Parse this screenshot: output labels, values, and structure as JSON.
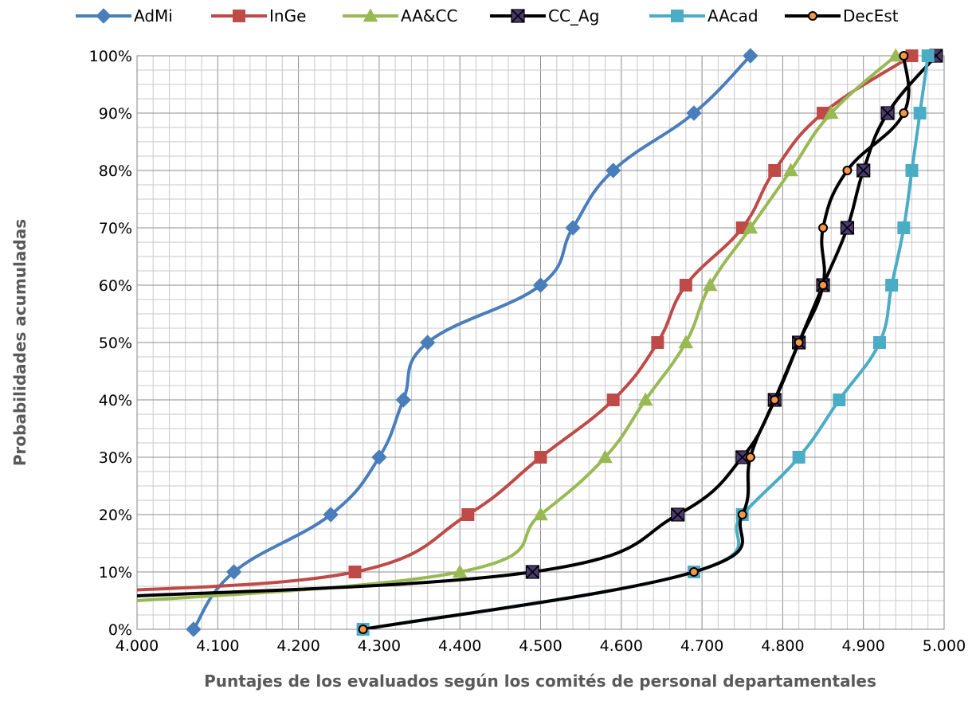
{
  "chart_data": {
    "type": "line",
    "xlabel": "Puntajes de los evaluados según los comités de personal departamentales",
    "ylabel": "Probabilidades acumuladas",
    "xlim": [
      4.0,
      5.0
    ],
    "ylim": [
      0,
      1
    ],
    "x_ticks": [
      "4.000",
      "4.100",
      "4.200",
      "4.300",
      "4.400",
      "4.500",
      "4.600",
      "4.700",
      "4.800",
      "4.900",
      "5.000"
    ],
    "y_ticks": [
      "0%",
      "10%",
      "20%",
      "30%",
      "40%",
      "50%",
      "60%",
      "70%",
      "80%",
      "90%",
      "100%"
    ],
    "grid": true,
    "legend_position": "top",
    "series": [
      {
        "name": "AdMi",
        "color": "#4a7ebb",
        "marker": "diamond",
        "points": [
          [
            4.07,
            0.0
          ],
          [
            4.12,
            0.1
          ],
          [
            4.24,
            0.2
          ],
          [
            4.3,
            0.3
          ],
          [
            4.33,
            0.4
          ],
          [
            4.36,
            0.5
          ],
          [
            4.5,
            0.6
          ],
          [
            4.54,
            0.7
          ],
          [
            4.59,
            0.8
          ],
          [
            4.69,
            0.9
          ],
          [
            4.76,
            1.0
          ]
        ]
      },
      {
        "name": "InGe",
        "color": "#be4b48",
        "marker": "square",
        "points": [
          [
            3.95,
            0.065
          ],
          [
            4.27,
            0.1
          ],
          [
            4.41,
            0.2
          ],
          [
            4.5,
            0.3
          ],
          [
            4.59,
            0.4
          ],
          [
            4.645,
            0.5
          ],
          [
            4.68,
            0.6
          ],
          [
            4.75,
            0.7
          ],
          [
            4.79,
            0.8
          ],
          [
            4.85,
            0.9
          ],
          [
            4.96,
            1.0
          ]
        ]
      },
      {
        "name": "AA&CC",
        "color": "#98b954",
        "marker": "triangle",
        "points": [
          [
            3.95,
            0.045
          ],
          [
            4.4,
            0.1
          ],
          [
            4.5,
            0.2
          ],
          [
            4.58,
            0.3
          ],
          [
            4.63,
            0.4
          ],
          [
            4.68,
            0.5
          ],
          [
            4.71,
            0.6
          ],
          [
            4.76,
            0.7
          ],
          [
            4.81,
            0.8
          ],
          [
            4.86,
            0.9
          ],
          [
            4.94,
            1.0
          ]
        ]
      },
      {
        "name": "CC_Ag",
        "color": "#000000",
        "marker": "x-square",
        "points": [
          [
            3.95,
            0.055
          ],
          [
            4.49,
            0.1
          ],
          [
            4.67,
            0.2
          ],
          [
            4.75,
            0.3
          ],
          [
            4.79,
            0.4
          ],
          [
            4.82,
            0.5
          ],
          [
            4.85,
            0.6
          ],
          [
            4.88,
            0.7
          ],
          [
            4.9,
            0.8
          ],
          [
            4.93,
            0.9
          ],
          [
            4.99,
            1.0
          ]
        ]
      },
      {
        "name": "AAcad",
        "color": "#4bacc6",
        "marker": "square",
        "points": [
          [
            4.28,
            0.0
          ],
          [
            4.69,
            0.1
          ],
          [
            4.75,
            0.2
          ],
          [
            4.82,
            0.3
          ],
          [
            4.87,
            0.4
          ],
          [
            4.92,
            0.5
          ],
          [
            4.935,
            0.6
          ],
          [
            4.95,
            0.7
          ],
          [
            4.96,
            0.8
          ],
          [
            4.97,
            0.9
          ],
          [
            4.98,
            1.0
          ]
        ]
      },
      {
        "name": "DecEst",
        "color": "#000000",
        "marker": "circle",
        "points": [
          [
            4.28,
            0.0
          ],
          [
            4.69,
            0.1
          ],
          [
            4.75,
            0.2
          ],
          [
            4.76,
            0.3
          ],
          [
            4.79,
            0.4
          ],
          [
            4.82,
            0.5
          ],
          [
            4.85,
            0.6
          ],
          [
            4.85,
            0.7
          ],
          [
            4.88,
            0.8
          ],
          [
            4.95,
            0.9
          ],
          [
            4.95,
            1.0
          ]
        ]
      }
    ]
  }
}
